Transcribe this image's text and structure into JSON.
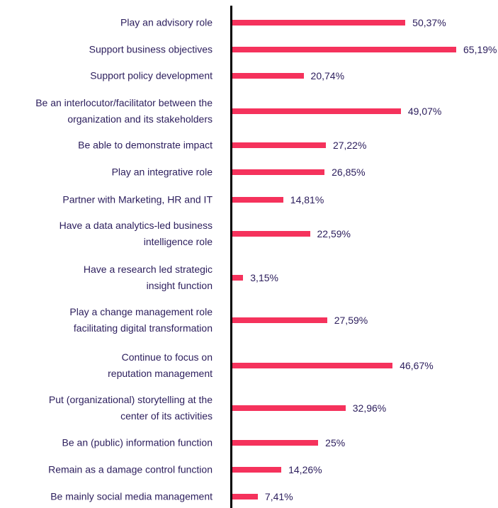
{
  "chart_data": {
    "type": "bar",
    "orientation": "horizontal",
    "color": "#f5325c",
    "categories": [
      "Play an advisory role",
      "Support business objectives",
      "Support policy development",
      "Be an interlocutor/facilitator between the organization and its stakeholders",
      "Be able to demonstrate impact",
      "Play an integrative role",
      "Partner with Marketing, HR and IT",
      "Have a data analytics-led business intelligence role",
      "Have a research led strategic insight function",
      "Play a change management role facilitating digital transformation",
      "Continue to focus on reputation management",
      "Put (organizational) storytelling at the center of its activities",
      "Be an (public) information function",
      "Remain as a damage control function",
      "Be mainly social media management"
    ],
    "values": [
      50.37,
      65.19,
      20.74,
      49.07,
      27.22,
      26.85,
      14.81,
      22.59,
      3.15,
      27.59,
      46.67,
      32.96,
      25,
      14.26,
      7.41
    ],
    "value_labels": [
      "50,37%",
      "65,19%",
      "20,74%",
      "49,07%",
      "27,22%",
      "26,85%",
      "14,81%",
      "22,59%",
      "3,15%",
      "27,59%",
      "46,67%",
      "32,96%",
      "25%",
      "14,26%",
      "7,41%"
    ]
  }
}
